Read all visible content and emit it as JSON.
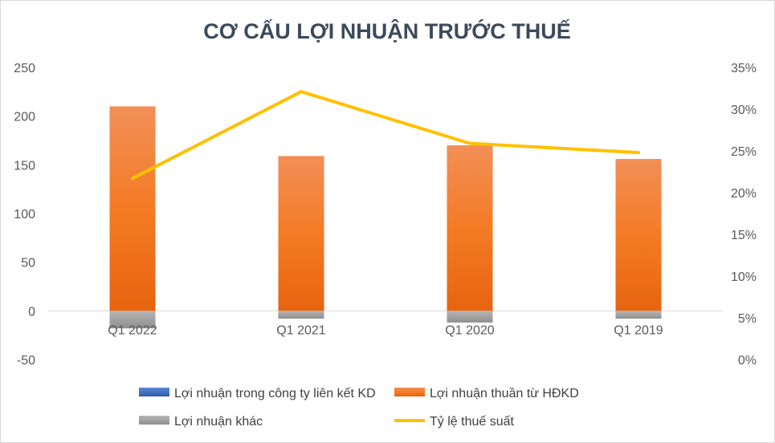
{
  "chart_data": {
    "type": "bar",
    "title": "CƠ CẤU LỢI NHUẬN TRƯỚC THUẾ",
    "categories": [
      "Q1 2022",
      "Q1 2021",
      "Q1 2020",
      "Q1 2019"
    ],
    "series": [
      {
        "name": "Lợi nhuận trong công ty liên kết KD",
        "type": "bar",
        "color": "#4472c4",
        "values": [
          0,
          0,
          0,
          0
        ]
      },
      {
        "name": "Lợi nhuận thuần từ HĐKD",
        "type": "bar",
        "color": "#f07d2c",
        "values": [
          210,
          159,
          170,
          156
        ]
      },
      {
        "name": "Lợi nhuận khác",
        "type": "bar",
        "color": "#a5a5a5",
        "values": [
          -18,
          -8,
          -12,
          -8
        ]
      },
      {
        "name": "Tỷ lệ thuế suất",
        "type": "line",
        "axis": "right",
        "color": "#ffc000",
        "values": [
          0.217,
          0.321,
          0.259,
          0.248
        ]
      }
    ],
    "y_left": {
      "min": -50,
      "max": 250,
      "step": 50,
      "ticks": [
        "-50",
        "0",
        "50",
        "100",
        "150",
        "200",
        "250"
      ]
    },
    "y_right": {
      "min": 0,
      "max": 0.35,
      "step": 0.05,
      "ticks": [
        "0%",
        "5%",
        "10%",
        "15%",
        "20%",
        "25%",
        "30%",
        "35%"
      ]
    },
    "grid": false,
    "legend_position": "bottom"
  }
}
